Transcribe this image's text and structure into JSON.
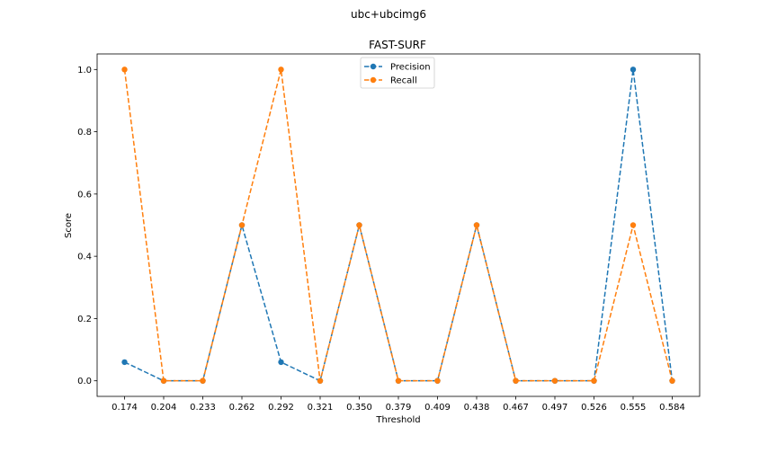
{
  "figure": {
    "suptitle": "ubc+ubcimg6"
  },
  "chart_data": {
    "type": "line",
    "title": "FAST-SURF",
    "xlabel": "Threshold",
    "ylabel": "Score",
    "x": [
      "0.174",
      "0.204",
      "0.233",
      "0.262",
      "0.292",
      "0.321",
      "0.350",
      "0.379",
      "0.409",
      "0.438",
      "0.467",
      "0.497",
      "0.526",
      "0.555",
      "0.584"
    ],
    "yticks": [
      "0.0",
      "0.2",
      "0.4",
      "0.6",
      "0.8",
      "1.0"
    ],
    "ylim": [
      -0.05,
      1.05
    ],
    "grid": false,
    "legend_position": "top-center",
    "series": [
      {
        "name": "Precision",
        "color": "#1f77b4",
        "linestyle": "dashed",
        "marker": "circle",
        "values": [
          0.06,
          0.0,
          0.0,
          0.5,
          0.06,
          0.0,
          0.5,
          0.0,
          0.0,
          0.5,
          0.0,
          0.0,
          0.0,
          1.0,
          0.0
        ]
      },
      {
        "name": "Recall",
        "color": "#ff7f0e",
        "linestyle": "dashed",
        "marker": "circle",
        "values": [
          1.0,
          0.0,
          0.0,
          0.5,
          1.0,
          0.0,
          0.5,
          0.0,
          0.0,
          0.5,
          0.0,
          0.0,
          0.0,
          0.5,
          0.0
        ]
      }
    ]
  }
}
